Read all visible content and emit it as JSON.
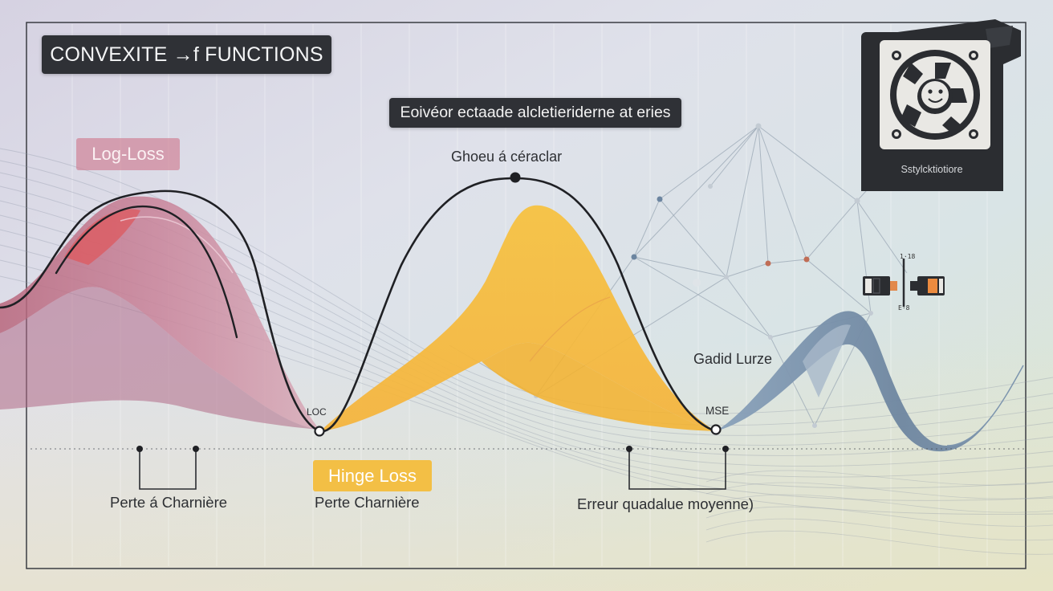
{
  "header": {
    "title": "CONVEXITE →f FUNCTIONS",
    "subtitle": "Eoivéor ectaade alcletieriderne at eries"
  },
  "curves": {
    "log_loss": {
      "tag": "Log-Loss",
      "tag_color": "#ce788c",
      "fill_color": "#c77b8f",
      "minimum_label": "LOC",
      "bracket_label": "Perte á Charnière"
    },
    "hinge_loss": {
      "peak_label": "Ghoeu á céraclar",
      "tag": "Hinge Loss",
      "tag_color": "#f3bf45",
      "fill_color": "#f6be3d",
      "bracket_label": "Perte Charnière"
    },
    "mse": {
      "side_label": "Gadid Lurze",
      "minimum_label": "MSE",
      "fill_color": "#6f8aa6",
      "bracket_label": "Erreur quadalue moyenne)"
    }
  },
  "badge": {
    "icon": "gear-face-icon",
    "text": "Sstylcktiotiore"
  },
  "fuse_widget": {
    "icon": "fuse-icon",
    "top_text": "1·18",
    "bottom_text": "E·8"
  },
  "colors": {
    "curve_line": "#1f2024",
    "panel_dark": "#2f3136",
    "network_line": "#9aa7b4"
  }
}
